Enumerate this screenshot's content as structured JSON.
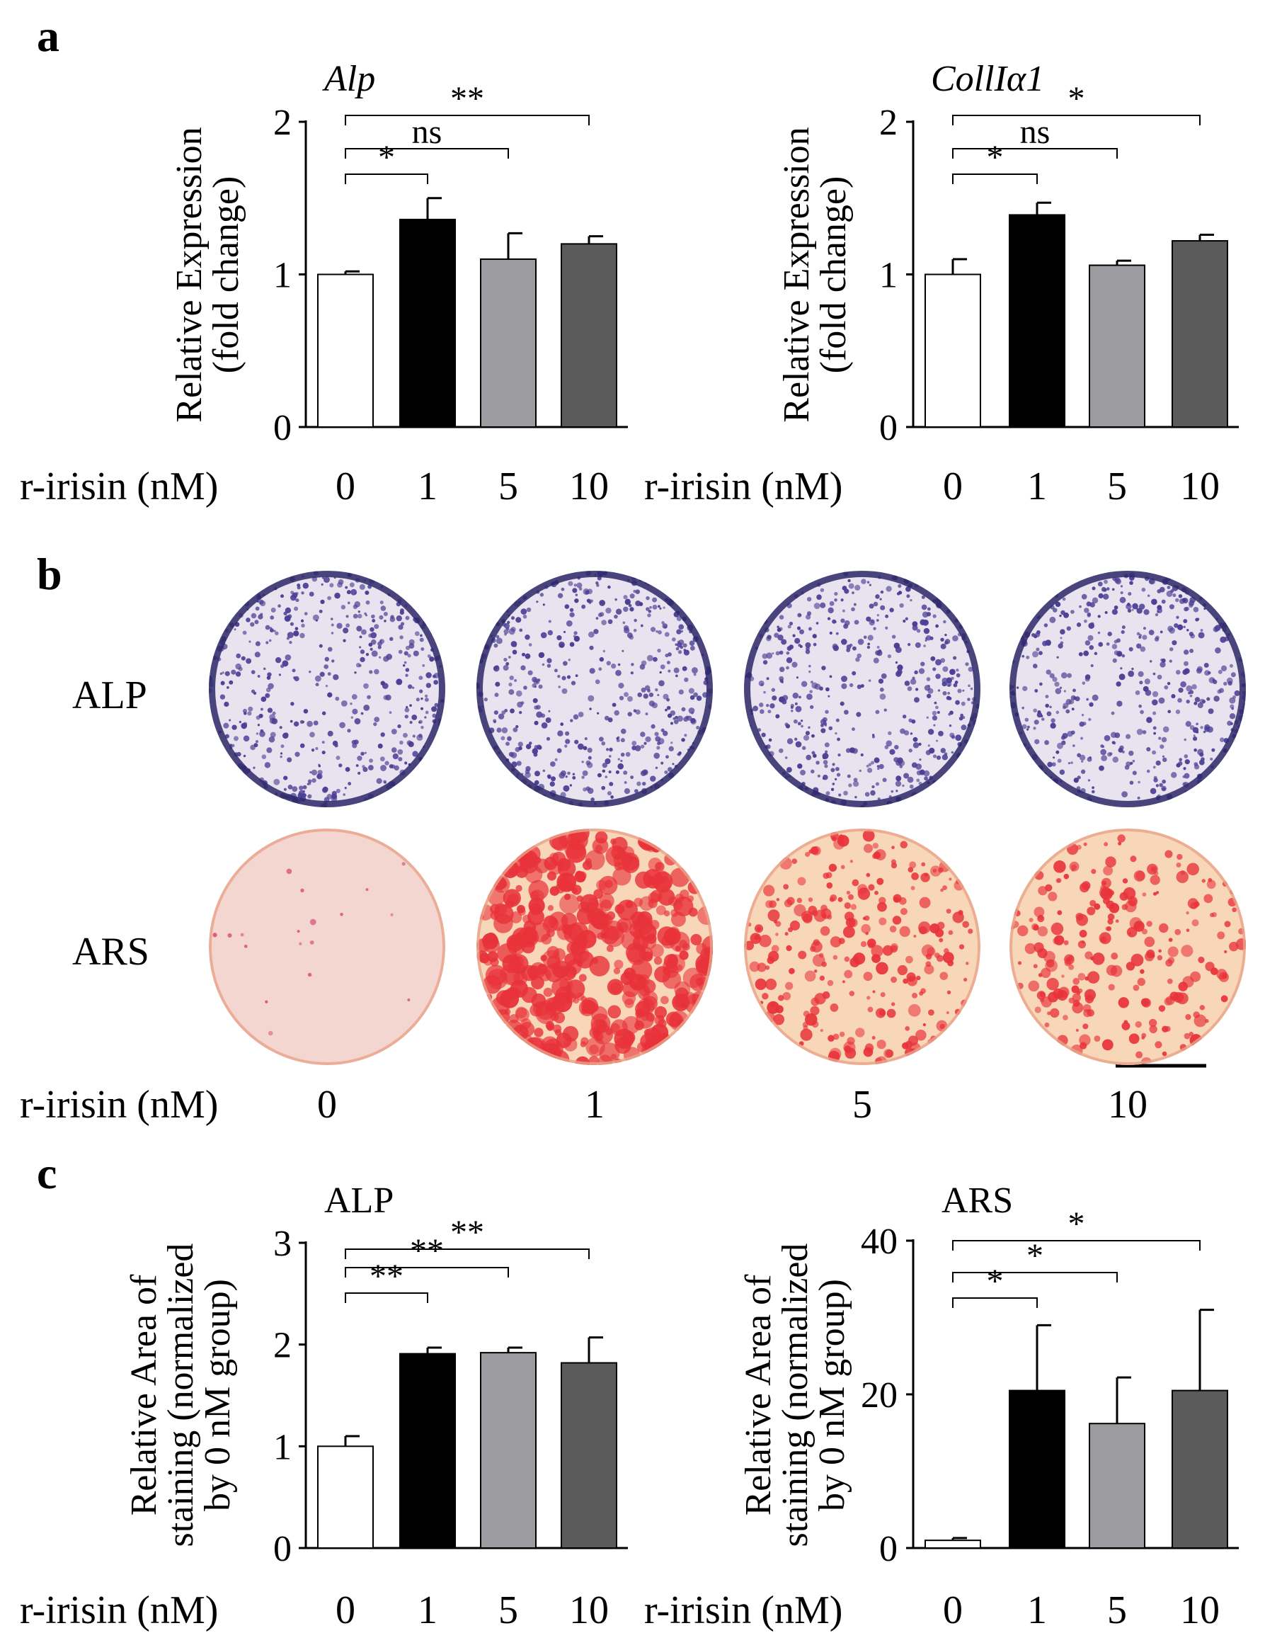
{
  "panel_labels": {
    "a": "a",
    "b": "b",
    "c": "c"
  },
  "colors": {
    "bar_0": "#ffffff",
    "bar_1": "#000000",
    "bar_5": "#9c9ca0",
    "bar_10": "#5b5b5b",
    "alp_stain": "#4b3f94",
    "alp_background": "#e8e3ee",
    "ars_stain": "#e8323a",
    "ars_background": "#f7d7b8"
  },
  "x_axis_label": "r-irisin (nM)",
  "panel_b": {
    "row_labels": [
      "ALP",
      "ARS"
    ],
    "x_label": "r-irisin (nM)",
    "concentrations": [
      "0",
      "1",
      "5",
      "10"
    ],
    "scale_bar": true
  },
  "chart_data": [
    {
      "type": "bar",
      "panel": "a",
      "title": "Alp",
      "ylabel_lines": [
        "Relative Expression",
        "(fold change)"
      ],
      "xlabel": "r-irisin (nM)",
      "categories": [
        "0",
        "1",
        "5",
        "10"
      ],
      "values": [
        1.0,
        1.36,
        1.1,
        1.2
      ],
      "errors": [
        0.02,
        0.14,
        0.17,
        0.05
      ],
      "ylim": [
        0,
        2
      ],
      "yticks": [
        "0",
        "1",
        "2"
      ],
      "significance": [
        {
          "from": 0,
          "to": 1,
          "label": "*"
        },
        {
          "from": 0,
          "to": 2,
          "label": "ns"
        },
        {
          "from": 0,
          "to": 3,
          "label": "**"
        }
      ]
    },
    {
      "type": "bar",
      "panel": "a",
      "title": "CollIα1",
      "ylabel_lines": [
        "Relative Expression",
        "(fold change)"
      ],
      "xlabel": "r-irisin (nM)",
      "categories": [
        "0",
        "1",
        "5",
        "10"
      ],
      "values": [
        1.0,
        1.39,
        1.06,
        1.22
      ],
      "errors": [
        0.1,
        0.08,
        0.03,
        0.04
      ],
      "ylim": [
        0,
        2
      ],
      "yticks": [
        "0",
        "1",
        "2"
      ],
      "significance": [
        {
          "from": 0,
          "to": 1,
          "label": "*"
        },
        {
          "from": 0,
          "to": 2,
          "label": "ns"
        },
        {
          "from": 0,
          "to": 3,
          "label": "*"
        }
      ]
    },
    {
      "type": "bar",
      "panel": "c",
      "title": "ALP",
      "ylabel_lines": [
        "Relative Area of",
        "staining (normalized",
        "by 0 nM group)"
      ],
      "xlabel": "r-irisin (nM)",
      "categories": [
        "0",
        "1",
        "5",
        "10"
      ],
      "values": [
        1.0,
        1.91,
        1.92,
        1.82
      ],
      "errors": [
        0.1,
        0.06,
        0.05,
        0.25
      ],
      "ylim": [
        0,
        3
      ],
      "yticks": [
        "0",
        "1",
        "2",
        "3"
      ],
      "significance": [
        {
          "from": 0,
          "to": 1,
          "label": "**"
        },
        {
          "from": 0,
          "to": 2,
          "label": "**"
        },
        {
          "from": 0,
          "to": 3,
          "label": "**"
        }
      ]
    },
    {
      "type": "bar",
      "panel": "c",
      "title": "ARS",
      "ylabel_lines": [
        "Relative Area of",
        "staining (normalized",
        "by 0 nM group)"
      ],
      "xlabel": "r-irisin (nM)",
      "categories": [
        "0",
        "1",
        "5",
        "10"
      ],
      "values": [
        1.0,
        20.5,
        16.2,
        20.5
      ],
      "errors": [
        0.3,
        8.5,
        6.0,
        10.5
      ],
      "ylim": [
        0,
        40
      ],
      "yticks": [
        "0",
        "20",
        "40"
      ],
      "significance": [
        {
          "from": 0,
          "to": 1,
          "label": "*"
        },
        {
          "from": 0,
          "to": 2,
          "label": "*"
        },
        {
          "from": 0,
          "to": 3,
          "label": "*"
        }
      ]
    }
  ]
}
